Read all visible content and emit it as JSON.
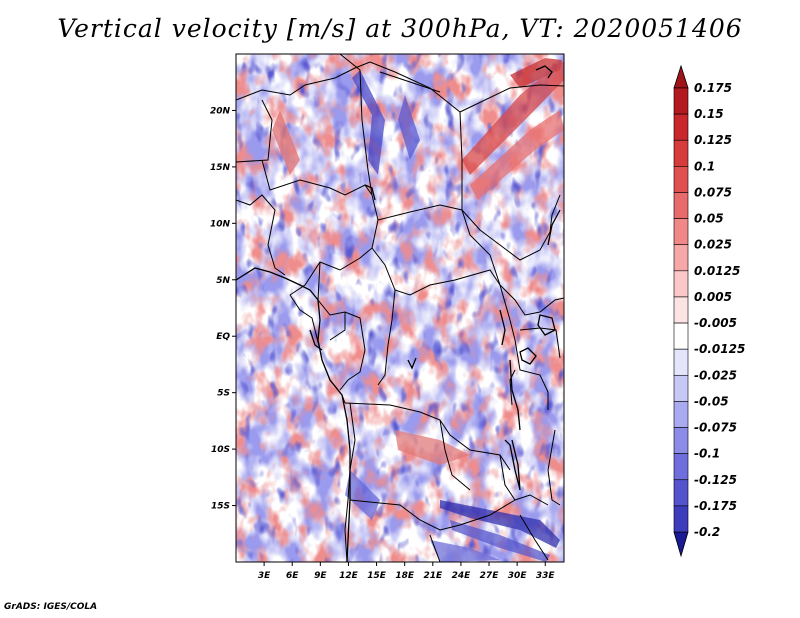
{
  "title": "Vertical velocity [m/s] at 300hPa, VT: 2020051406",
  "credit": "GrADS: IGES/COLA",
  "map": {
    "lon_range": [
      0,
      35
    ],
    "lat_range": [
      -20,
      25
    ],
    "lon_ticks": [
      {
        "value": 3,
        "label": "3E"
      },
      {
        "value": 6,
        "label": "6E"
      },
      {
        "value": 9,
        "label": "9E"
      },
      {
        "value": 12,
        "label": "12E"
      },
      {
        "value": 15,
        "label": "15E"
      },
      {
        "value": 18,
        "label": "18E"
      },
      {
        "value": 21,
        "label": "21E"
      },
      {
        "value": 24,
        "label": "24E"
      },
      {
        "value": 27,
        "label": "27E"
      },
      {
        "value": 30,
        "label": "30E"
      },
      {
        "value": 33,
        "label": "33E"
      }
    ],
    "lat_ticks": [
      {
        "value": 20,
        "label": "20N"
      },
      {
        "value": 15,
        "label": "15N"
      },
      {
        "value": 10,
        "label": "10N"
      },
      {
        "value": 5,
        "label": "5N"
      },
      {
        "value": 0,
        "label": "EQ"
      },
      {
        "value": -5,
        "label": "5S"
      },
      {
        "value": -10,
        "label": "10S"
      },
      {
        "value": -15,
        "label": "15S"
      }
    ]
  },
  "colorbar": {
    "levels": [
      {
        "label": "0.175",
        "color": "#b21a1f"
      },
      {
        "label": "0.15",
        "color": "#c8272c"
      },
      {
        "label": "0.125",
        "color": "#d63c3c"
      },
      {
        "label": "0.1",
        "color": "#e05050"
      },
      {
        "label": "0.075",
        "color": "#e86a6a"
      },
      {
        "label": "0.05",
        "color": "#f08888"
      },
      {
        "label": "0.025",
        "color": "#f6a8a8"
      },
      {
        "label": "0.0125",
        "color": "#fac8c8"
      },
      {
        "label": "0.005",
        "color": "#fde4e4"
      },
      {
        "label": "-0.005",
        "color": "#ffffff"
      },
      {
        "label": "-0.0125",
        "color": "#e4e4fb"
      },
      {
        "label": "-0.025",
        "color": "#c8c8f6"
      },
      {
        "label": "-0.05",
        "color": "#aaaaf0"
      },
      {
        "label": "-0.075",
        "color": "#8c8ce8"
      },
      {
        "label": "-0.1",
        "color": "#6e6edc"
      },
      {
        "label": "-0.125",
        "color": "#5454cf"
      },
      {
        "label": "-0.175",
        "color": "#3c3cbc"
      },
      {
        "label": "-0.2",
        "color": "#2828a8"
      }
    ],
    "top_arrow_color": "#9e1418",
    "bottom_arrow_color": "#1a1a94"
  }
}
